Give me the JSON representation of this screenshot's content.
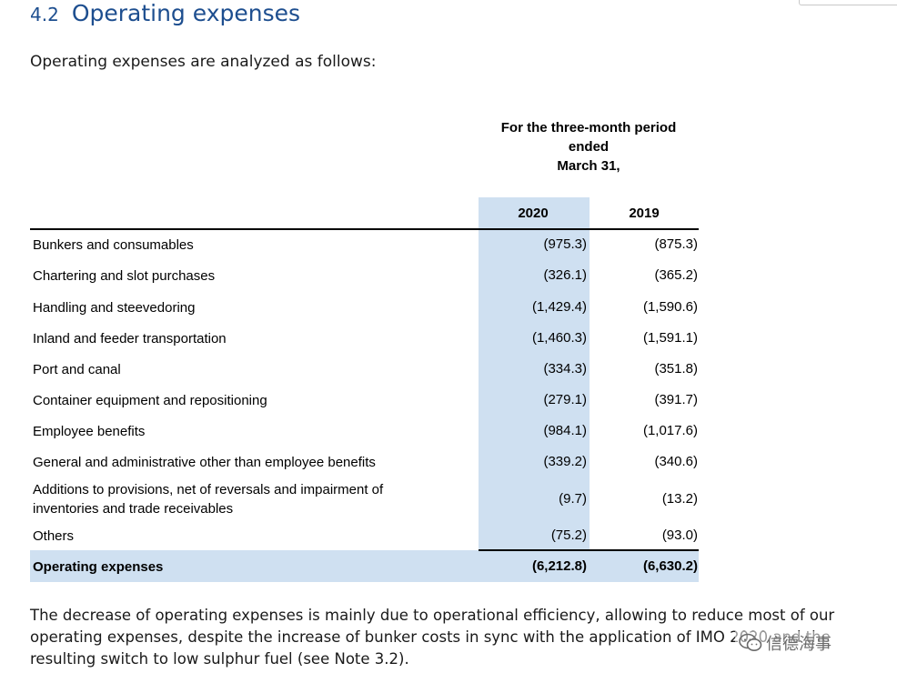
{
  "section": {
    "number": "4.2",
    "title": "Operating expenses",
    "intro": "Operating expenses are analyzed as follows:"
  },
  "table": {
    "period_header": [
      "For the three-month period",
      "ended",
      "March 31,"
    ],
    "columns": [
      "2020",
      "2019"
    ],
    "rows": [
      {
        "label": "Bunkers and consumables",
        "v2020": "(975.3)",
        "v2019": "(875.3)"
      },
      {
        "label": "Chartering and slot purchases",
        "v2020": "(326.1)",
        "v2019": "(365.2)"
      },
      {
        "label": "Handling and steevedoring",
        "v2020": "(1,429.4)",
        "v2019": "(1,590.6)"
      },
      {
        "label": "Inland and feeder transportation",
        "v2020": "(1,460.3)",
        "v2019": "(1,591.1)"
      },
      {
        "label": "Port and canal",
        "v2020": "(334.3)",
        "v2019": "(351.8)"
      },
      {
        "label": "Container equipment and repositioning",
        "v2020": "(279.1)",
        "v2019": "(391.7)"
      },
      {
        "label": "Employee benefits",
        "v2020": "(984.1)",
        "v2019": "(1,017.6)"
      },
      {
        "label": "General and administrative other than employee benefits",
        "v2020": "(339.2)",
        "v2019": "(340.6)"
      },
      {
        "label": "Additions to provisions, net of reversals and impairment of inventories and trade receivables",
        "v2020": "(9.7)",
        "v2019": "(13.2)"
      },
      {
        "label": "Others",
        "v2020": "(75.2)",
        "v2019": "(93.0)"
      }
    ],
    "total": {
      "label": "Operating expenses",
      "v2020": "(6,212.8)",
      "v2019": "(6,630.2)"
    }
  },
  "note": "The decrease of operating expenses is mainly due to operational efficiency, allowing to reduce most of our operating expenses, despite the increase of bunker costs in sync with the application of IMO 2020 and the resulting switch to low sulphur fuel (see Note 3.2).",
  "watermark": {
    "text": "信德海事",
    "icon": "wechat-icon"
  }
}
